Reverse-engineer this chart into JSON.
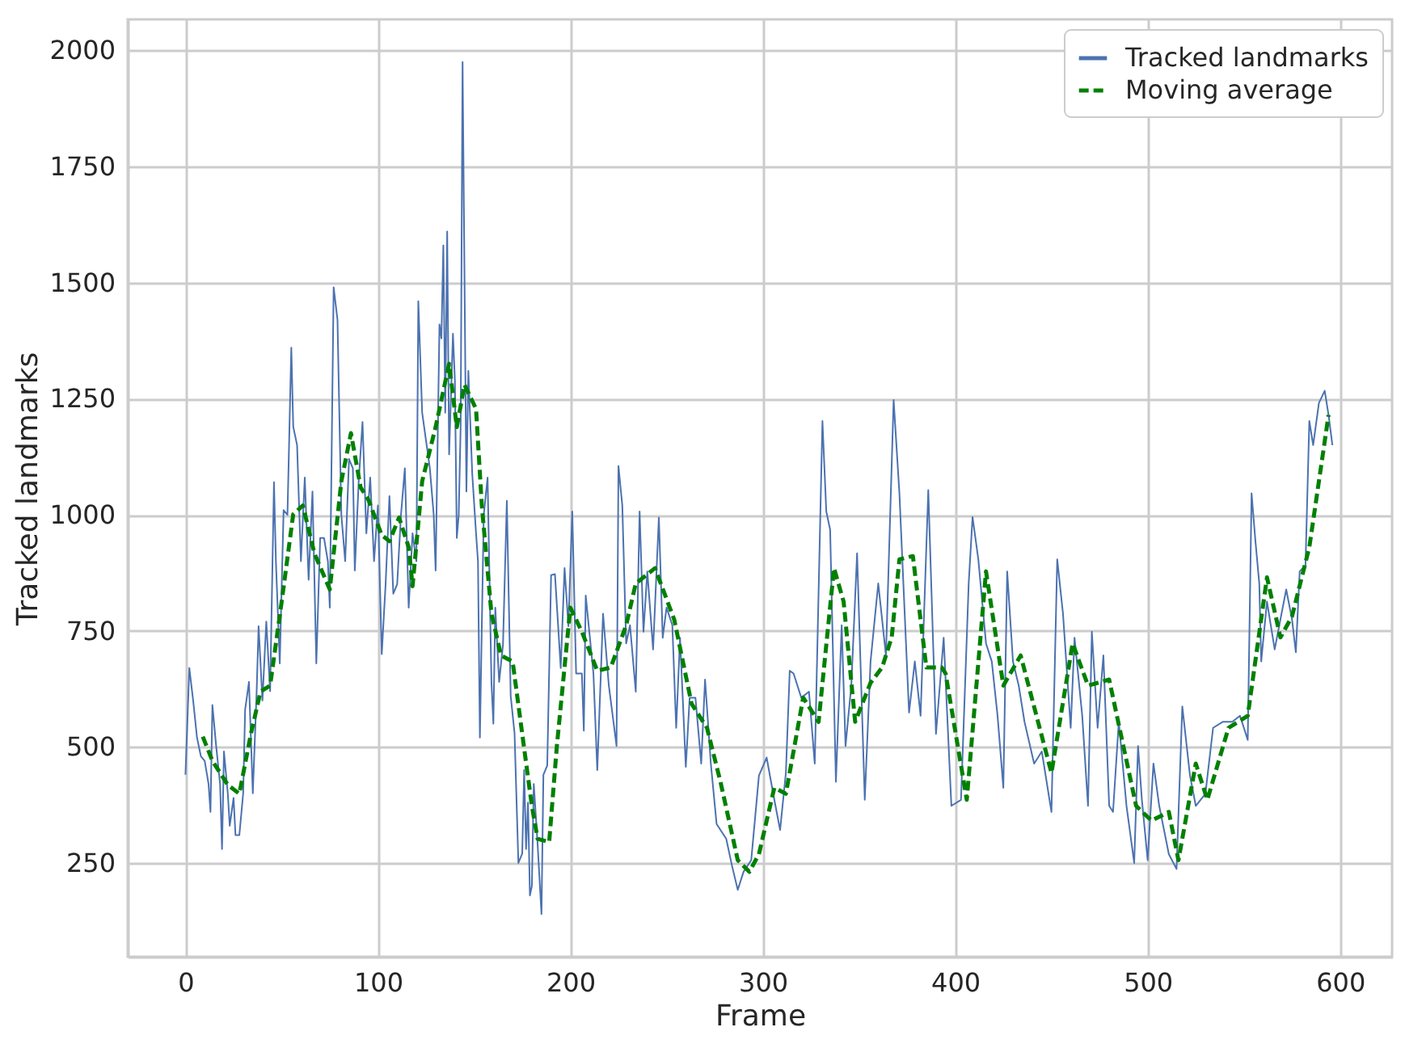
{
  "chart_data": {
    "type": "line",
    "xlabel": "Frame",
    "ylabel": "Tracked landmarks",
    "xlim": [
      -30,
      627
    ],
    "ylim": [
      48,
      2067
    ],
    "xticks": [
      0,
      100,
      200,
      300,
      400,
      500,
      600
    ],
    "yticks": [
      250,
      500,
      750,
      1000,
      1250,
      1500,
      1750,
      2000
    ],
    "grid": true,
    "legend": "top right",
    "series": [
      {
        "name": "Tracked landmarks",
        "color": "#4c72b0",
        "line_style": "solid",
        "x": [
          0,
          2,
          4,
          6,
          8,
          10,
          12,
          13,
          14,
          16,
          18,
          19,
          20,
          22,
          23,
          25,
          26,
          28,
          30,
          31,
          33,
          35,
          37,
          38,
          40,
          42,
          44,
          46,
          47,
          49,
          51,
          53,
          55,
          56,
          58,
          60,
          62,
          64,
          66,
          68,
          70,
          72,
          74,
          75,
          77,
          79,
          81,
          83,
          85,
          87,
          88,
          90,
          92,
          94,
          96,
          98,
          100,
          102,
          104,
          106,
          108,
          110,
          112,
          114,
          116,
          118,
          120,
          121,
          123,
          125,
          127,
          129,
          130,
          132,
          133,
          134,
          135,
          136,
          137,
          139,
          140,
          141,
          142,
          143,
          144,
          146,
          147,
          149,
          151,
          152,
          153,
          155,
          157,
          159,
          160,
          161,
          163,
          165,
          167,
          169,
          171,
          173,
          175,
          176,
          177,
          178,
          179,
          180,
          181,
          183,
          185,
          186,
          188,
          190,
          192,
          195,
          197,
          199,
          201,
          203,
          206,
          207,
          208,
          212,
          214,
          217,
          220,
          224,
          225,
          227,
          229,
          231,
          234,
          236,
          238,
          240,
          243,
          246,
          248,
          250,
          253,
          255,
          257,
          260,
          262,
          265,
          268,
          270,
          273,
          276,
          281,
          284,
          287,
          290,
          294,
          298,
          302,
          306,
          309,
          312,
          314,
          316,
          320,
          324,
          327,
          331,
          333,
          335,
          338,
          341,
          343,
          346,
          349,
          353,
          356,
          360,
          364,
          368,
          371,
          376,
          379,
          382,
          386,
          390,
          394,
          398,
          403,
          407,
          409,
          412,
          416,
          419,
          422,
          425,
          427,
          430,
          433,
          436,
          441,
          445,
          450,
          453,
          456,
          460,
          462,
          466,
          469,
          471,
          474,
          477,
          480,
          482,
          485,
          489,
          493,
          495,
          497,
          500,
          503,
          506,
          511,
          515,
          518,
          522,
          525,
          530,
          534,
          539,
          544,
          548,
          552,
          554,
          556,
          558,
          559,
          562,
          566,
          569,
          572,
          575,
          577,
          579,
          582,
          584,
          586,
          589,
          592,
          594,
          596
        ],
        "values": [
          440,
          670,
          600,
          520,
          480,
          470,
          420,
          360,
          590,
          500,
          420,
          280,
          490,
          400,
          330,
          390,
          310,
          310,
          400,
          580,
          640,
          400,
          620,
          760,
          600,
          770,
          620,
          1070,
          900,
          680,
          1010,
          1000,
          1360,
          1190,
          1150,
          900,
          1080,
          860,
          1050,
          680,
          950,
          950,
          900,
          800,
          1490,
          1420,
          1000,
          900,
          1120,
          1100,
          880,
          1070,
          1200,
          960,
          1080,
          900,
          1020,
          700,
          850,
          1040,
          830,
          850,
          1000,
          1100,
          800,
          960,
          900,
          1460,
          1220,
          1160,
          1100,
          1000,
          880,
          1410,
          1380,
          1580,
          1220,
          1610,
          1130,
          1390,
          1290,
          950,
          1000,
          1190,
          1975,
          1050,
          1310,
          1090,
          960,
          900,
          520,
          1000,
          1080,
          640,
          550,
          800,
          640,
          720,
          1030,
          610,
          530,
          250,
          270,
          450,
          280,
          380,
          180,
          200,
          420,
          290,
          140,
          440,
          460,
          870,
          872,
          670,
          885,
          760,
          1007,
          658,
          658,
          535,
          826,
          658,
          450,
          787,
          632,
          502,
          1105,
          1020,
          723,
          762,
          619,
          1007,
          748,
          878,
          710,
          994,
          735,
          800,
          762,
          541,
          735,
          457,
          606,
          606,
          464,
          645,
          464,
          334,
          302,
          244,
          192,
          231,
          256,
          438,
          477,
          386,
          321,
          444,
          664,
          658,
          606,
          619,
          464,
          1202,
          1007,
          968,
          425,
          762,
          502,
          632,
          917,
          386,
          684,
          852,
          697,
          1247,
          1046,
          574,
          684,
          567,
          1053,
          528,
          735,
          373,
          386,
          852,
          995,
          904,
          723,
          684,
          567,
          412,
          878,
          684,
          632,
          554,
          464,
          490,
          360,
          904,
          787,
          541,
          735,
          567,
          373,
          748,
          541,
          697,
          373,
          360,
          554,
          373,
          250,
          502,
          386,
          256,
          464,
          373,
          269,
          237,
          587,
          438,
          373,
          399,
          541,
          554,
          554,
          567,
          515,
          1046,
          943,
          852,
          684,
          813,
          710,
          775,
          839,
          775,
          704,
          878,
          891,
          1202,
          1150,
          1241,
          1267,
          1215,
          1150
        ]
      },
      {
        "name": "Moving average",
        "color": "#008000",
        "line_style": "dashed",
        "x": [
          9,
          14,
          22,
          28,
          34,
          39,
          44,
          50,
          56,
          61,
          67,
          75,
          81,
          86,
          91,
          95,
          102,
          106,
          111,
          116,
          118,
          123,
          130,
          137,
          141,
          145,
          151,
          154,
          159,
          164,
          170,
          175,
          180,
          183,
          189,
          193,
          200,
          206,
          214,
          221,
          229,
          234,
          244,
          254,
          263,
          271,
          278,
          287,
          293,
          298,
          306,
          312,
          321,
          329,
          337,
          342,
          348,
          356,
          362,
          367,
          371,
          378,
          385,
          393,
          395,
          406,
          416,
          425,
          434,
          450,
          461,
          469,
          480,
          494,
          502,
          511,
          516,
          525,
          531,
          542,
          552,
          562,
          569,
          575,
          584,
          594
        ],
        "values": [
          522,
          470,
          418,
          399,
          528,
          619,
          632,
          813,
          1001,
          1020,
          917,
          839,
          1072,
          1176,
          1059,
          1033,
          956,
          943,
          994,
          930,
          846,
          1072,
          1189,
          1325,
          1189,
          1280,
          1228,
          1020,
          787,
          697,
          684,
          528,
          373,
          302,
          295,
          502,
          800,
          748,
          664,
          671,
          762,
          852,
          885,
          774,
          593,
          541,
          425,
          256,
          231,
          269,
          412,
          399,
          606,
          554,
          885,
          813,
          554,
          638,
          671,
          736,
          904,
          911,
          671,
          671,
          658,
          386,
          878,
          632,
          697,
          444,
          723,
          632,
          645,
          373,
          341,
          360,
          256,
          464,
          386,
          541,
          567,
          865,
          736,
          781,
          930,
          1215
        ]
      }
    ]
  }
}
